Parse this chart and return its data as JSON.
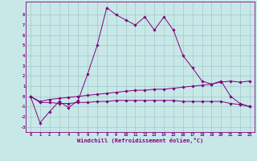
{
  "xlabel": "Windchill (Refroidissement éolien,°C)",
  "bg_color": "#c8e8e8",
  "grid_color": "#a0c8c8",
  "line_color": "#800080",
  "x": [
    0,
    1,
    2,
    3,
    4,
    5,
    6,
    7,
    8,
    9,
    10,
    11,
    12,
    13,
    14,
    15,
    16,
    17,
    18,
    19,
    20,
    21,
    22,
    23
  ],
  "line1": [
    0.0,
    -2.6,
    -1.5,
    -0.5,
    -1.1,
    -0.4,
    2.2,
    5.0,
    8.7,
    8.0,
    7.5,
    7.0,
    7.8,
    6.5,
    7.8,
    6.5,
    4.0,
    2.8,
    1.5,
    1.2,
    1.5,
    0.0,
    -0.7,
    -1.0
  ],
  "line2": [
    0.0,
    -0.6,
    -0.6,
    -0.7,
    -0.7,
    -0.6,
    -0.6,
    -0.5,
    -0.5,
    -0.4,
    -0.4,
    -0.4,
    -0.4,
    -0.4,
    -0.4,
    -0.4,
    -0.5,
    -0.5,
    -0.5,
    -0.5,
    -0.5,
    -0.7,
    -0.8,
    -1.0
  ],
  "line3": [
    0.0,
    -0.5,
    -0.3,
    -0.2,
    -0.1,
    0.0,
    0.1,
    0.2,
    0.3,
    0.4,
    0.5,
    0.6,
    0.6,
    0.7,
    0.7,
    0.8,
    0.9,
    1.0,
    1.1,
    1.2,
    1.4,
    1.5,
    1.4,
    1.5
  ],
  "ylim": [
    -3.5,
    9.3
  ],
  "yticks": [
    -3,
    -2,
    -1,
    0,
    1,
    2,
    3,
    4,
    5,
    6,
    7,
    8
  ],
  "xlim": [
    -0.5,
    23.5
  ],
  "xticks": [
    0,
    1,
    2,
    3,
    4,
    5,
    6,
    7,
    8,
    9,
    10,
    11,
    12,
    13,
    14,
    15,
    16,
    17,
    18,
    19,
    20,
    21,
    22,
    23
  ]
}
